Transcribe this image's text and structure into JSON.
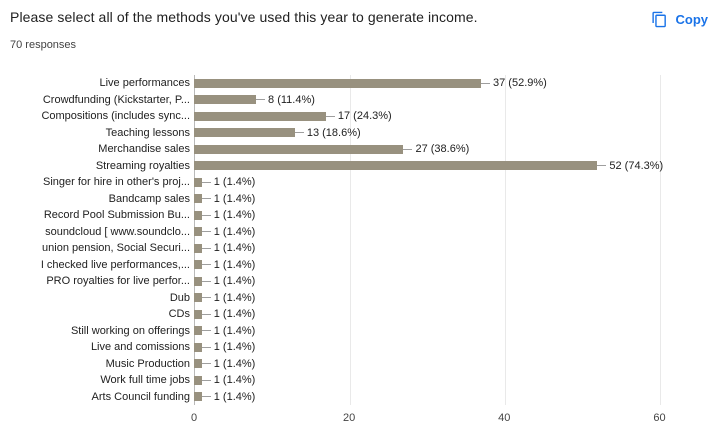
{
  "header": {
    "title": "Please select all of the methods you've used this year to generate income.",
    "responses": "70 responses",
    "copy_label": "Copy"
  },
  "colors": {
    "accent_blue": "#1a73e8",
    "bar_color": "#98917f",
    "axis_line": "#b9b9b9",
    "gridline": "#e9e9e9"
  },
  "chart_data": {
    "type": "bar",
    "orientation": "horizontal",
    "title": "Please select all of the methods you've used this year to generate income.",
    "subtitle": "70 responses",
    "categories": [
      "Live performances",
      "Crowdfunding (Kickstarter, P...",
      "Compositions (includes sync...",
      "Teaching lessons",
      "Merchandise sales",
      "Streaming royalties",
      "Singer for hire in other's proj...",
      "Bandcamp sales",
      "Record Pool Submission Bu...",
      "soundcloud [ www.soundclo...",
      "union pension, Social Securi...",
      "I checked live performances,...",
      "PRO royalties for live perfor...",
      "Dub",
      "CDs",
      "Still working on offerings",
      "Live and comissions",
      "Music Production",
      "Work full time jobs",
      "Arts Council funding"
    ],
    "values": [
      37,
      8,
      17,
      13,
      27,
      52,
      1,
      1,
      1,
      1,
      1,
      1,
      1,
      1,
      1,
      1,
      1,
      1,
      1,
      1
    ],
    "value_labels": [
      "37 (52.9%)",
      "8 (11.4%)",
      "17 (24.3%)",
      "13 (18.6%)",
      "27 (38.6%)",
      "52 (74.3%)",
      "1 (1.4%)",
      "1 (1.4%)",
      "1 (1.4%)",
      "1 (1.4%)",
      "1 (1.4%)",
      "1 (1.4%)",
      "1 (1.4%)",
      "1 (1.4%)",
      "1 (1.4%)",
      "1 (1.4%)",
      "1 (1.4%)",
      "1 (1.4%)",
      "1 (1.4%)",
      "1 (1.4%)"
    ],
    "xticks": [
      0,
      20,
      40,
      60
    ],
    "xlim": [
      0,
      66
    ],
    "xlabel": "",
    "ylabel": "",
    "grid": true,
    "legend": "none",
    "bar_color": "#98917f"
  }
}
